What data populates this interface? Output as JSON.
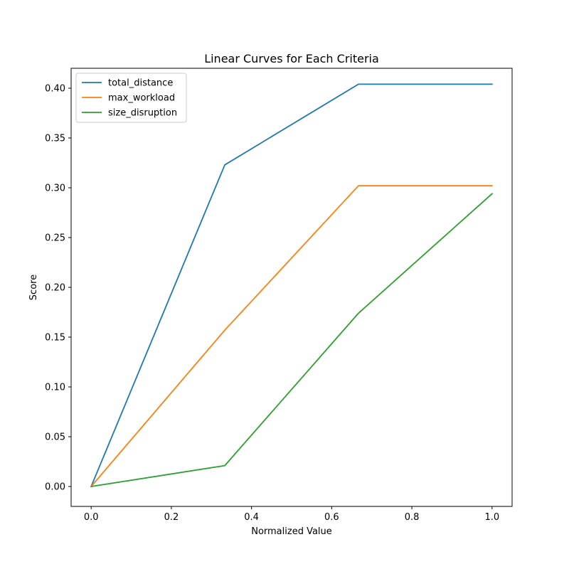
{
  "chart_data": {
    "type": "line",
    "title": "Linear Curves for Each Criteria",
    "xlabel": "Normalized Value",
    "ylabel": "Score",
    "xlim": [
      -0.05,
      1.05
    ],
    "ylim": [
      -0.02,
      0.42
    ],
    "xticks": [
      0.0,
      0.2,
      0.4,
      0.6,
      0.8,
      1.0
    ],
    "xtick_labels": [
      "0.0",
      "0.2",
      "0.4",
      "0.6",
      "0.8",
      "1.0"
    ],
    "yticks": [
      0.0,
      0.05,
      0.1,
      0.15,
      0.2,
      0.25,
      0.3,
      0.35,
      0.4
    ],
    "ytick_labels": [
      "0.00",
      "0.05",
      "0.10",
      "0.15",
      "0.20",
      "0.25",
      "0.30",
      "0.35",
      "0.40"
    ],
    "grid": false,
    "legend_position": "top-left",
    "x": [
      0.0,
      0.3333,
      0.6667,
      1.0
    ],
    "series": [
      {
        "name": "total_distance",
        "color": "#1f77b4",
        "values": [
          0.0,
          0.323,
          0.404,
          0.404
        ]
      },
      {
        "name": "max_workload",
        "color": "#ff7f0e",
        "values": [
          0.0,
          0.157,
          0.302,
          0.302
        ]
      },
      {
        "name": "size_disruption",
        "color": "#2ca02c",
        "values": [
          0.0,
          0.021,
          0.174,
          0.294
        ]
      }
    ]
  }
}
